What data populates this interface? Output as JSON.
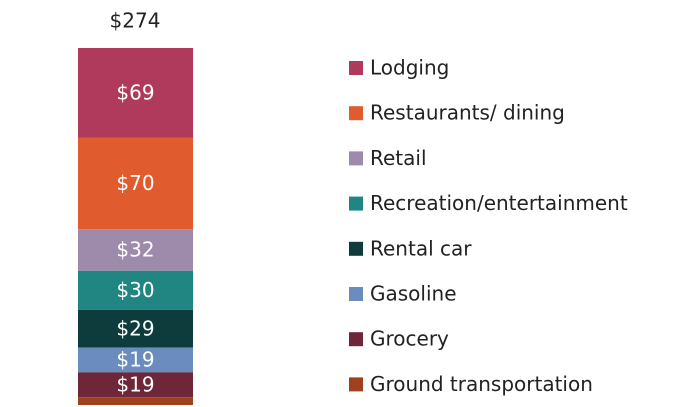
{
  "chart_data": {
    "type": "stacked-bar",
    "total": 274,
    "total_label": "$274",
    "series": [
      {
        "name": "Lodging",
        "color": "#b03a5b",
        "values": [
          69
        ],
        "value_labels": [
          "$69"
        ]
      },
      {
        "name": "Restaurants/ dining",
        "color": "#e05c2e",
        "values": [
          70
        ],
        "value_labels": [
          "$70"
        ]
      },
      {
        "name": "Retail",
        "color": "#9e8aab",
        "values": [
          32
        ],
        "value_labels": [
          "$32"
        ]
      },
      {
        "name": "Recreation/entertainment",
        "color": "#218582",
        "values": [
          30
        ],
        "value_labels": [
          "$30"
        ]
      },
      {
        "name": "Rental car",
        "color": "#0e3b3b",
        "values": [
          29
        ],
        "value_labels": [
          "$29"
        ]
      },
      {
        "name": "Gasoline",
        "color": "#6b8cbf",
        "values": [
          19
        ],
        "value_labels": [
          "$19"
        ]
      },
      {
        "name": "Grocery",
        "color": "#6e2639",
        "values": [
          19
        ],
        "value_labels": [
          "$19"
        ]
      },
      {
        "name": "Ground transportation",
        "color": "#a0401e",
        "values": [
          6
        ],
        "value_labels": [
          null
        ]
      }
    ]
  }
}
